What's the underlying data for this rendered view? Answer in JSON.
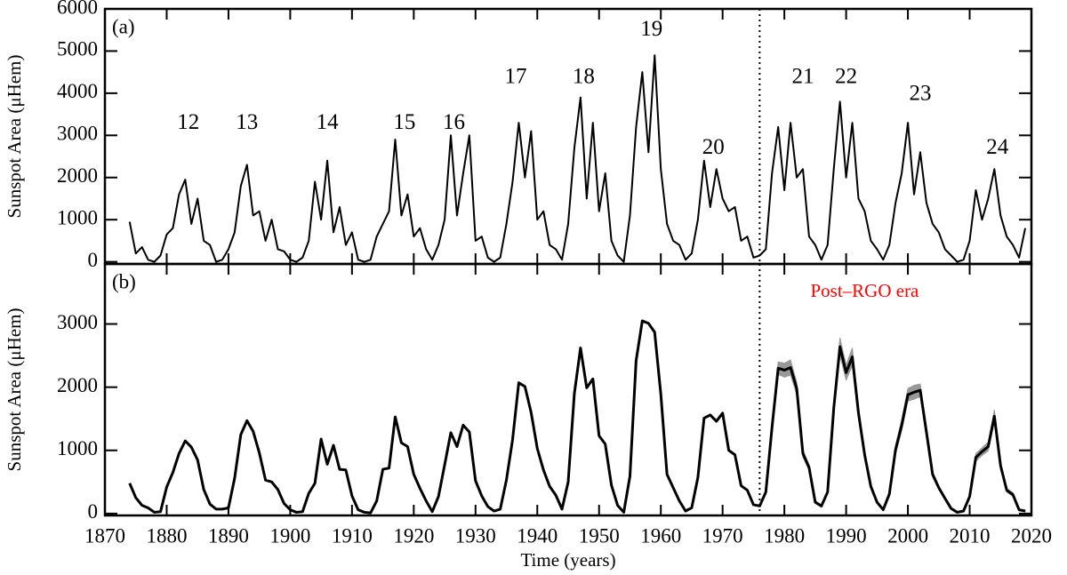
{
  "chart_data": [
    {
      "type": "line",
      "panel_label": "(a)",
      "ylabel": "Sunspot Area (μHem)",
      "color": "#000000",
      "xlim": [
        1870,
        2020
      ],
      "xticks": [
        1870,
        1880,
        1890,
        1900,
        1910,
        1920,
        1930,
        1940,
        1950,
        1960,
        1970,
        1980,
        1990,
        2000,
        2010,
        2020
      ],
      "ylim": [
        -50,
        6000
      ],
      "yticks": [
        0,
        1000,
        2000,
        3000,
        4000,
        5000,
        6000
      ],
      "vline": 1976,
      "x": [
        1874,
        1875,
        1876,
        1877,
        1878,
        1879,
        1880,
        1881,
        1882,
        1883,
        1884,
        1885,
        1886,
        1887,
        1888,
        1889,
        1890,
        1891,
        1892,
        1893,
        1894,
        1895,
        1896,
        1897,
        1898,
        1899,
        1900,
        1901,
        1902,
        1903,
        1904,
        1905,
        1906,
        1907,
        1908,
        1909,
        1910,
        1911,
        1912,
        1913,
        1914,
        1915,
        1916,
        1917,
        1918,
        1919,
        1920,
        1921,
        1922,
        1923,
        1924,
        1925,
        1926,
        1927,
        1928,
        1929,
        1930,
        1931,
        1932,
        1933,
        1934,
        1935,
        1936,
        1937,
        1938,
        1939,
        1940,
        1941,
        1942,
        1943,
        1944,
        1945,
        1946,
        1947,
        1948,
        1949,
        1950,
        1951,
        1952,
        1953,
        1954,
        1955,
        1956,
        1957,
        1958,
        1959,
        1960,
        1961,
        1962,
        1963,
        1964,
        1965,
        1966,
        1967,
        1968,
        1969,
        1970,
        1971,
        1972,
        1973,
        1974,
        1975,
        1976,
        1977,
        1978,
        1979,
        1980,
        1981,
        1982,
        1983,
        1984,
        1985,
        1986,
        1987,
        1988,
        1989,
        1990,
        1991,
        1992,
        1993,
        1994,
        1995,
        1996,
        1997,
        1998,
        1999,
        2000,
        2001,
        2002,
        2003,
        2004,
        2005,
        2006,
        2007,
        2008,
        2009,
        2010,
        2011,
        2012,
        2013,
        2014,
        2015,
        2016,
        2017,
        2018,
        2019
      ],
      "values": [
        950,
        200,
        350,
        50,
        0,
        150,
        650,
        800,
        1600,
        1950,
        900,
        1500,
        500,
        400,
        0,
        50,
        300,
        700,
        1800,
        2300,
        1100,
        1200,
        500,
        1000,
        300,
        250,
        50,
        0,
        100,
        500,
        1900,
        1000,
        2400,
        700,
        1300,
        400,
        700,
        50,
        0,
        50,
        600,
        900,
        1200,
        2900,
        1100,
        1600,
        600,
        800,
        300,
        50,
        400,
        1000,
        3000,
        1100,
        2100,
        3000,
        500,
        600,
        100,
        0,
        100,
        900,
        1900,
        3300,
        2000,
        3100,
        1000,
        1200,
        400,
        300,
        50,
        900,
        2700,
        3900,
        1500,
        3300,
        1200,
        2100,
        500,
        150,
        0,
        1100,
        3200,
        4500,
        2600,
        4900,
        2200,
        900,
        500,
        400,
        50,
        200,
        1000,
        2400,
        1300,
        2200,
        1500,
        1200,
        1300,
        500,
        600,
        100,
        150,
        300,
        2100,
        3200,
        1700,
        3300,
        2000,
        2200,
        600,
        400,
        50,
        400,
        2200,
        3800,
        2000,
        3300,
        1500,
        1200,
        500,
        300,
        50,
        400,
        1400,
        2100,
        3300,
        1600,
        2600,
        1400,
        900,
        700,
        300,
        150,
        0,
        50,
        500,
        1700,
        1000,
        1500,
        2200,
        1100,
        600,
        400,
        100,
        800
      ],
      "annotations": [
        {
          "text": "12",
          "x": 1883.5,
          "y": 3280
        },
        {
          "text": "13",
          "x": 1893,
          "y": 3280
        },
        {
          "text": "14",
          "x": 1906,
          "y": 3280
        },
        {
          "text": "15",
          "x": 1918.5,
          "y": 3280
        },
        {
          "text": "16",
          "x": 1926.5,
          "y": 3280
        },
        {
          "text": "17",
          "x": 1936.5,
          "y": 4360
        },
        {
          "text": "18",
          "x": 1947.5,
          "y": 4360
        },
        {
          "text": "19",
          "x": 1958.5,
          "y": 5490
        },
        {
          "text": "20",
          "x": 1968.5,
          "y": 2690
        },
        {
          "text": "21",
          "x": 1983,
          "y": 4360
        },
        {
          "text": "22",
          "x": 1990,
          "y": 4360
        },
        {
          "text": "23",
          "x": 2002,
          "y": 3960
        },
        {
          "text": "24",
          "x": 2014.5,
          "y": 2690
        }
      ]
    },
    {
      "type": "line",
      "panel_label": "(b)",
      "ylabel": "Sunspot Area (μHem)",
      "xlabel": "Time (years)",
      "color": "#000000",
      "band_color": "#999999",
      "xlim": [
        1870,
        2020
      ],
      "xticks": [
        1870,
        1880,
        1890,
        1900,
        1910,
        1920,
        1930,
        1940,
        1950,
        1960,
        1970,
        1980,
        1990,
        2000,
        2010,
        2020
      ],
      "ylim": [
        -30,
        3950
      ],
      "yticks": [
        0,
        1000,
        2000,
        3000
      ],
      "vline": 1976,
      "x": [
        1874,
        1875,
        1876,
        1877,
        1878,
        1879,
        1880,
        1881,
        1882,
        1883,
        1884,
        1885,
        1886,
        1887,
        1888,
        1889,
        1890,
        1891,
        1892,
        1893,
        1894,
        1895,
        1896,
        1897,
        1898,
        1899,
        1900,
        1901,
        1902,
        1903,
        1904,
        1905,
        1906,
        1907,
        1908,
        1909,
        1910,
        1911,
        1912,
        1913,
        1914,
        1915,
        1916,
        1917,
        1918,
        1919,
        1920,
        1921,
        1922,
        1923,
        1924,
        1925,
        1926,
        1927,
        1928,
        1929,
        1930,
        1931,
        1932,
        1933,
        1934,
        1935,
        1936,
        1937,
        1938,
        1939,
        1940,
        1941,
        1942,
        1943,
        1944,
        1945,
        1946,
        1947,
        1948,
        1949,
        1950,
        1951,
        1952,
        1953,
        1954,
        1955,
        1956,
        1957,
        1958,
        1959,
        1960,
        1961,
        1962,
        1963,
        1964,
        1965,
        1966,
        1967,
        1968,
        1969,
        1970,
        1971,
        1972,
        1973,
        1974,
        1975,
        1976,
        1977,
        1978,
        1979,
        1980,
        1981,
        1982,
        1983,
        1984,
        1985,
        1986,
        1987,
        1988,
        1989,
        1990,
        1991,
        1992,
        1993,
        1994,
        1995,
        1996,
        1997,
        1998,
        1999,
        2000,
        2001,
        2002,
        2003,
        2004,
        2005,
        2006,
        2007,
        2008,
        2009,
        2010,
        2011,
        2012,
        2013,
        2014,
        2015,
        2016,
        2017,
        2018,
        2019
      ],
      "values": [
        480,
        250,
        130,
        90,
        20,
        30,
        420,
        650,
        950,
        1150,
        1050,
        850,
        380,
        150,
        70,
        70,
        90,
        560,
        1250,
        1470,
        1300,
        960,
        530,
        500,
        380,
        160,
        60,
        20,
        30,
        320,
        480,
        1180,
        780,
        1080,
        700,
        690,
        280,
        60,
        20,
        10,
        200,
        700,
        720,
        1530,
        1120,
        1060,
        620,
        400,
        200,
        30,
        270,
        770,
        1280,
        1060,
        1400,
        1290,
        520,
        280,
        110,
        40,
        70,
        530,
        1170,
        2070,
        2010,
        1600,
        1030,
        690,
        430,
        290,
        70,
        500,
        1900,
        2620,
        1990,
        2130,
        1230,
        1100,
        450,
        130,
        20,
        590,
        2420,
        3050,
        3010,
        2870,
        1890,
        620,
        410,
        200,
        40,
        90,
        570,
        1510,
        1560,
        1460,
        1590,
        1000,
        930,
        440,
        370,
        140,
        120,
        340,
        1360,
        2300,
        2270,
        2310,
        1980,
        950,
        730,
        180,
        120,
        340,
        1670,
        2640,
        2230,
        2480,
        1590,
        930,
        430,
        180,
        60,
        310,
        1010,
        1400,
        1880,
        1920,
        1950,
        1290,
        620,
        410,
        240,
        80,
        20,
        40,
        270,
        890,
        980,
        1060,
        1540,
        760,
        370,
        300,
        60,
        40
      ],
      "errors": [
        null,
        null,
        null,
        null,
        null,
        null,
        null,
        null,
        null,
        null,
        null,
        null,
        null,
        null,
        null,
        null,
        null,
        null,
        null,
        null,
        null,
        null,
        null,
        null,
        null,
        null,
        null,
        null,
        null,
        null,
        null,
        null,
        null,
        null,
        null,
        null,
        null,
        null,
        null,
        null,
        null,
        null,
        null,
        null,
        null,
        null,
        null,
        null,
        null,
        null,
        null,
        null,
        null,
        null,
        null,
        null,
        null,
        null,
        null,
        null,
        null,
        null,
        null,
        null,
        null,
        null,
        null,
        null,
        null,
        null,
        null,
        null,
        null,
        null,
        null,
        null,
        null,
        null,
        null,
        null,
        null,
        null,
        null,
        null,
        null,
        null,
        null,
        null,
        null,
        null,
        null,
        null,
        null,
        null,
        null,
        null,
        null,
        null,
        null,
        null,
        null,
        null,
        null,
        40,
        60,
        100,
        110,
        120,
        100,
        60,
        40,
        20,
        20,
        30,
        80,
        140,
        120,
        140,
        90,
        50,
        30,
        20,
        10,
        30,
        70,
        90,
        100,
        110,
        100,
        70,
        40,
        30,
        20,
        10,
        10,
        10,
        30,
        60,
        60,
        70,
        100,
        60,
        30,
        30,
        10,
        10
      ],
      "annotations": [
        {
          "text": "Post–RGO era",
          "x": 1993,
          "y": 3500,
          "color": "#ff0000"
        }
      ]
    }
  ]
}
